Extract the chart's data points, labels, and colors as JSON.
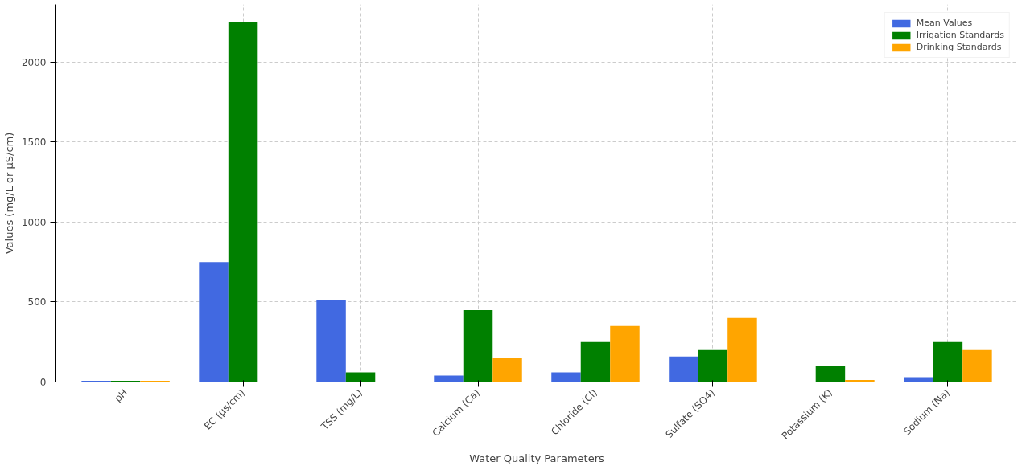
{
  "chart_data": {
    "type": "bar",
    "xlabel": "Water Quality Parameters",
    "ylabel": "Values (mg/L or µS/cm)",
    "categories": [
      "pH",
      "EC (µs/cm)",
      "TSS (mg/L)",
      "Calcium (Ca)",
      "Chloride (Cl)",
      "Sulfate (SO4)",
      "Potassium (K)",
      "Sodium (Na)"
    ],
    "series": [
      {
        "name": "Mean Values",
        "color": "#4169e1",
        "values": [
          7,
          750,
          515,
          40,
          60,
          160,
          null,
          30
        ]
      },
      {
        "name": "Irrigation Standards",
        "color": "#008000",
        "values": [
          8,
          2250,
          60,
          450,
          250,
          200,
          100,
          250
        ]
      },
      {
        "name": "Drinking Standards",
        "color": "#ffa500",
        "values": [
          8,
          null,
          null,
          150,
          350,
          400,
          12,
          200
        ]
      }
    ],
    "ylim": [
      0,
      2360
    ],
    "yticks": [
      0,
      500,
      1000,
      1500,
      2000
    ],
    "grid": true,
    "legend": "top right"
  }
}
